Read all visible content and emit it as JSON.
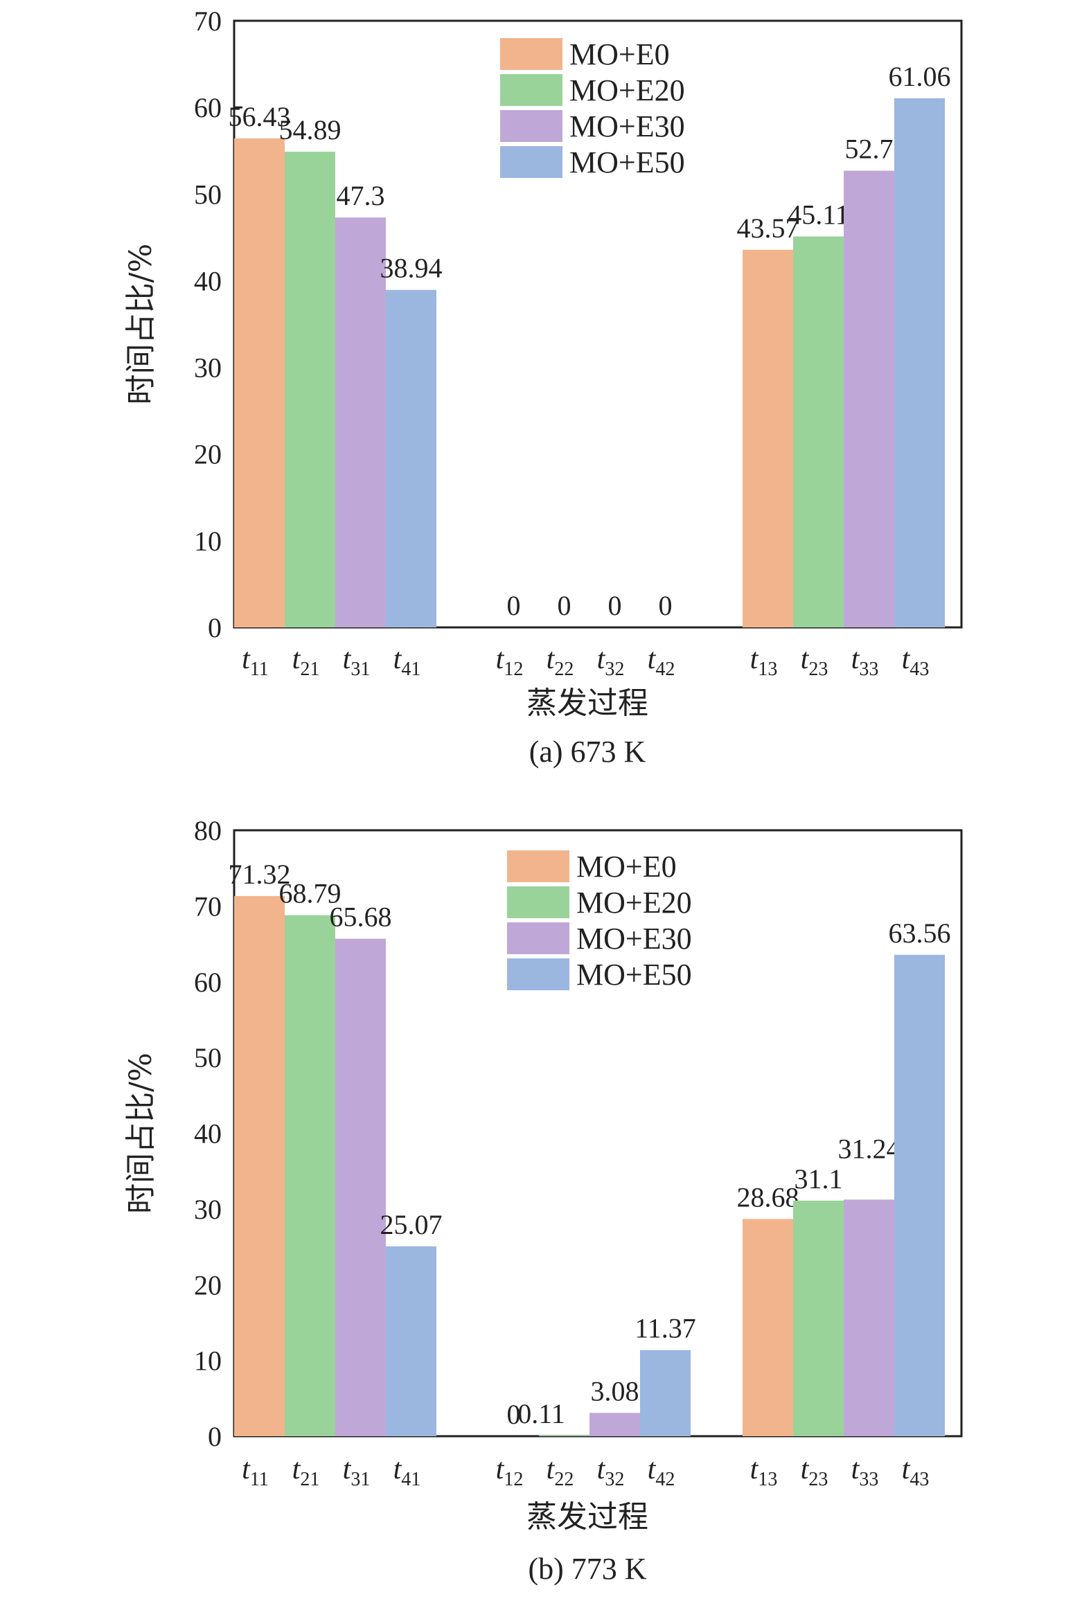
{
  "colors": {
    "MO+E0": "#f2b48c",
    "MO+E20": "#9ad39a",
    "MO+E30": "#bfa8d8",
    "MO+E50": "#9bb7df",
    "frame": "#222222"
  },
  "chart_data": [
    {
      "type": "bar",
      "caption": "(a) 673 K",
      "xlabel": "蒸发过程",
      "ylabel": "时间占比/%",
      "ylim": [
        0,
        70
      ],
      "yticks": [
        0,
        10,
        20,
        30,
        40,
        50,
        60,
        70
      ],
      "legend_position": "top-center",
      "grid": false,
      "series": [
        {
          "name": "MO+E0",
          "color_key": "MO+E0",
          "values": [
            56.43,
            0,
            43.57
          ],
          "labels": [
            "56.43",
            "0",
            "43.57"
          ],
          "categories": [
            {
              "main": "t",
              "sub": "11"
            },
            {
              "main": "t",
              "sub": "12"
            },
            {
              "main": "t",
              "sub": "13"
            }
          ]
        },
        {
          "name": "MO+E20",
          "color_key": "MO+E20",
          "values": [
            54.89,
            0,
            45.11
          ],
          "labels": [
            "54.89",
            "0",
            "45.11"
          ],
          "categories": [
            {
              "main": "t",
              "sub": "21"
            },
            {
              "main": "t",
              "sub": "22"
            },
            {
              "main": "t",
              "sub": "23"
            }
          ]
        },
        {
          "name": "MO+E30",
          "color_key": "MO+E30",
          "values": [
            47.3,
            0,
            52.7
          ],
          "labels": [
            "47.3",
            "0",
            "52.7"
          ],
          "categories": [
            {
              "main": "t",
              "sub": "31"
            },
            {
              "main": "t",
              "sub": "32"
            },
            {
              "main": "t",
              "sub": "33"
            }
          ]
        },
        {
          "name": "MO+E50",
          "color_key": "MO+E50",
          "values": [
            38.94,
            0,
            61.06
          ],
          "labels": [
            "38.94",
            "0",
            "61.06"
          ],
          "categories": [
            {
              "main": "t",
              "sub": "41"
            },
            {
              "main": "t",
              "sub": "42"
            },
            {
              "main": "t",
              "sub": "43"
            }
          ]
        }
      ]
    },
    {
      "type": "bar",
      "caption": "(b) 773 K",
      "xlabel": "蒸发过程",
      "ylabel": "时间占比/%",
      "ylim": [
        0,
        80
      ],
      "yticks": [
        0,
        10,
        20,
        30,
        40,
        50,
        60,
        70,
        80
      ],
      "legend_position": "top-center",
      "grid": false,
      "series": [
        {
          "name": "MO+E0",
          "color_key": "MO+E0",
          "values": [
            71.32,
            0,
            28.68
          ],
          "labels": [
            "71.32",
            "0",
            "28.68"
          ],
          "categories": [
            {
              "main": "t",
              "sub": "11"
            },
            {
              "main": "t",
              "sub": "12"
            },
            {
              "main": "t",
              "sub": "13"
            }
          ]
        },
        {
          "name": "MO+E20",
          "color_key": "MO+E20",
          "values": [
            68.79,
            0.11,
            31.1
          ],
          "labels": [
            "68.79",
            "0.11",
            "31.1"
          ],
          "categories": [
            {
              "main": "t",
              "sub": "21"
            },
            {
              "main": "t",
              "sub": "22"
            },
            {
              "main": "t",
              "sub": "23"
            }
          ]
        },
        {
          "name": "MO+E30",
          "color_key": "MO+E30",
          "values": [
            65.68,
            3.08,
            31.24
          ],
          "labels": [
            "65.68",
            "3.08",
            "31.24"
          ],
          "categories": [
            {
              "main": "t",
              "sub": "31"
            },
            {
              "main": "t",
              "sub": "32"
            },
            {
              "main": "t",
              "sub": "33"
            }
          ]
        },
        {
          "name": "MO+E50",
          "color_key": "MO+E50",
          "values": [
            25.07,
            11.37,
            63.56
          ],
          "labels": [
            "25.07",
            "11.37",
            "63.56"
          ],
          "categories": [
            {
              "main": "t",
              "sub": "41"
            },
            {
              "main": "t",
              "sub": "42"
            },
            {
              "main": "t",
              "sub": "43"
            }
          ]
        }
      ]
    }
  ]
}
